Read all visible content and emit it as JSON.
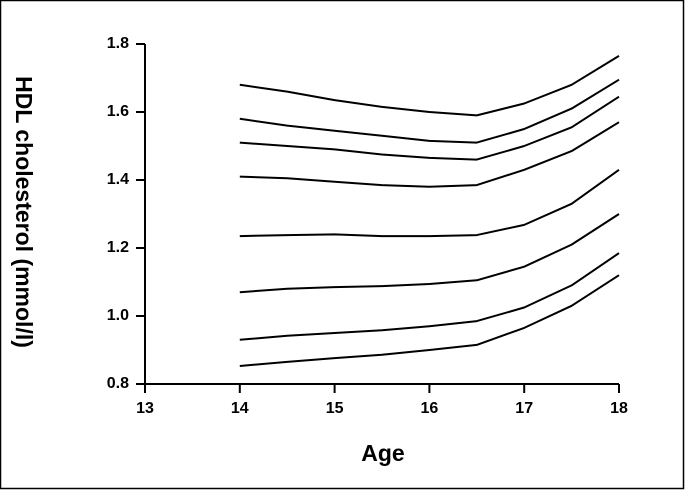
{
  "chart_data": {
    "type": "line",
    "x_label": "Age",
    "y_label": "HDL cholesterol (mmol/l)",
    "x": [
      14,
      14.5,
      15,
      15.5,
      16,
      16.5,
      17,
      17.5,
      18
    ],
    "series": [
      {
        "color": "#000000",
        "values": [
          1.68,
          1.66,
          1.635,
          1.615,
          1.6,
          1.59,
          1.625,
          1.68,
          1.765
        ]
      },
      {
        "color": "#000000",
        "values": [
          1.58,
          1.56,
          1.545,
          1.53,
          1.515,
          1.51,
          1.55,
          1.61,
          1.695
        ]
      },
      {
        "color": "#000000",
        "values": [
          1.51,
          1.5,
          1.49,
          1.475,
          1.465,
          1.46,
          1.5,
          1.555,
          1.645
        ]
      },
      {
        "color": "#000000",
        "values": [
          1.41,
          1.405,
          1.395,
          1.385,
          1.38,
          1.385,
          1.43,
          1.485,
          1.57
        ]
      },
      {
        "color": "#000000",
        "values": [
          1.235,
          1.238,
          1.24,
          1.235,
          1.235,
          1.238,
          1.268,
          1.33,
          1.43
        ]
      },
      {
        "color": "#000000",
        "values": [
          1.07,
          1.08,
          1.085,
          1.088,
          1.094,
          1.105,
          1.145,
          1.21,
          1.3
        ]
      },
      {
        "color": "#000000",
        "values": [
          0.93,
          0.942,
          0.95,
          0.958,
          0.97,
          0.985,
          1.025,
          1.09,
          1.185
        ]
      },
      {
        "color": "#000000",
        "values": [
          0.853,
          0.865,
          0.876,
          0.886,
          0.9,
          0.915,
          0.965,
          1.03,
          1.12
        ]
      }
    ],
    "xlim": [
      13,
      18
    ],
    "xticks": [
      13,
      14,
      15,
      16,
      17,
      18
    ],
    "ylim": [
      0.8,
      1.8
    ],
    "yticks": [
      0.8,
      {
        "value": 1,
        "label": "1.0"
      },
      1.2,
      1.4,
      1.6,
      1.8
    ],
    "grid": false
  }
}
